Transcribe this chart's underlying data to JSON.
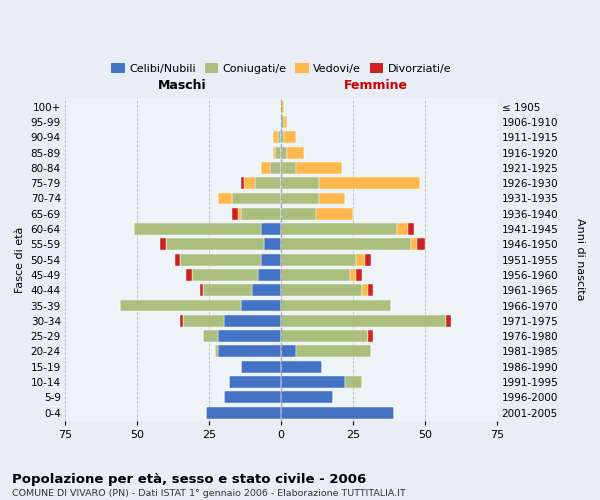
{
  "age_groups": [
    "0-4",
    "5-9",
    "10-14",
    "15-19",
    "20-24",
    "25-29",
    "30-34",
    "35-39",
    "40-44",
    "45-49",
    "50-54",
    "55-59",
    "60-64",
    "65-69",
    "70-74",
    "75-79",
    "80-84",
    "85-89",
    "90-94",
    "95-99",
    "100+"
  ],
  "birth_years": [
    "2001-2005",
    "1996-2000",
    "1991-1995",
    "1986-1990",
    "1981-1985",
    "1976-1980",
    "1971-1975",
    "1966-1970",
    "1961-1965",
    "1956-1960",
    "1951-1955",
    "1946-1950",
    "1941-1945",
    "1936-1940",
    "1931-1935",
    "1926-1930",
    "1921-1925",
    "1916-1920",
    "1911-1915",
    "1906-1910",
    "≤ 1905"
  ],
  "maschi": {
    "celibi": [
      26,
      20,
      18,
      14,
      22,
      22,
      20,
      14,
      10,
      8,
      7,
      6,
      7,
      0,
      0,
      0,
      0,
      0,
      0,
      0,
      0
    ],
    "coniugati": [
      0,
      0,
      0,
      0,
      1,
      5,
      14,
      42,
      17,
      23,
      28,
      34,
      44,
      14,
      17,
      9,
      4,
      2,
      1,
      0,
      0
    ],
    "vedovi": [
      0,
      0,
      0,
      0,
      0,
      0,
      0,
      0,
      0,
      0,
      0,
      0,
      0,
      1,
      5,
      4,
      3,
      1,
      2,
      0,
      0
    ],
    "divorziati": [
      0,
      0,
      0,
      0,
      0,
      0,
      1,
      0,
      1,
      2,
      2,
      2,
      0,
      2,
      0,
      1,
      0,
      0,
      0,
      0,
      0
    ]
  },
  "femmine": {
    "nubili": [
      39,
      18,
      22,
      14,
      5,
      0,
      0,
      0,
      0,
      0,
      0,
      0,
      0,
      0,
      0,
      0,
      0,
      0,
      0,
      0,
      0
    ],
    "coniugate": [
      0,
      0,
      6,
      0,
      26,
      30,
      57,
      38,
      28,
      24,
      26,
      45,
      40,
      12,
      13,
      13,
      5,
      2,
      1,
      1,
      0
    ],
    "vedove": [
      0,
      0,
      0,
      0,
      0,
      0,
      0,
      0,
      2,
      2,
      3,
      2,
      4,
      13,
      9,
      35,
      16,
      6,
      4,
      1,
      1
    ],
    "divorziate": [
      0,
      0,
      0,
      0,
      0,
      2,
      2,
      0,
      2,
      2,
      2,
      3,
      2,
      0,
      0,
      0,
      0,
      0,
      0,
      0,
      0
    ]
  },
  "colors": {
    "celibi_nubili": "#4472C4",
    "coniugati": "#AABF7E",
    "vedovi": "#FFB84D",
    "divorziati": "#CC2222"
  },
  "xlim": 75,
  "title": "Popolazione per età, sesso e stato civile - 2006",
  "subtitle": "COMUNE DI VIVARO (PN) - Dati ISTAT 1° gennaio 2006 - Elaborazione TUTTITALIA.IT"
}
